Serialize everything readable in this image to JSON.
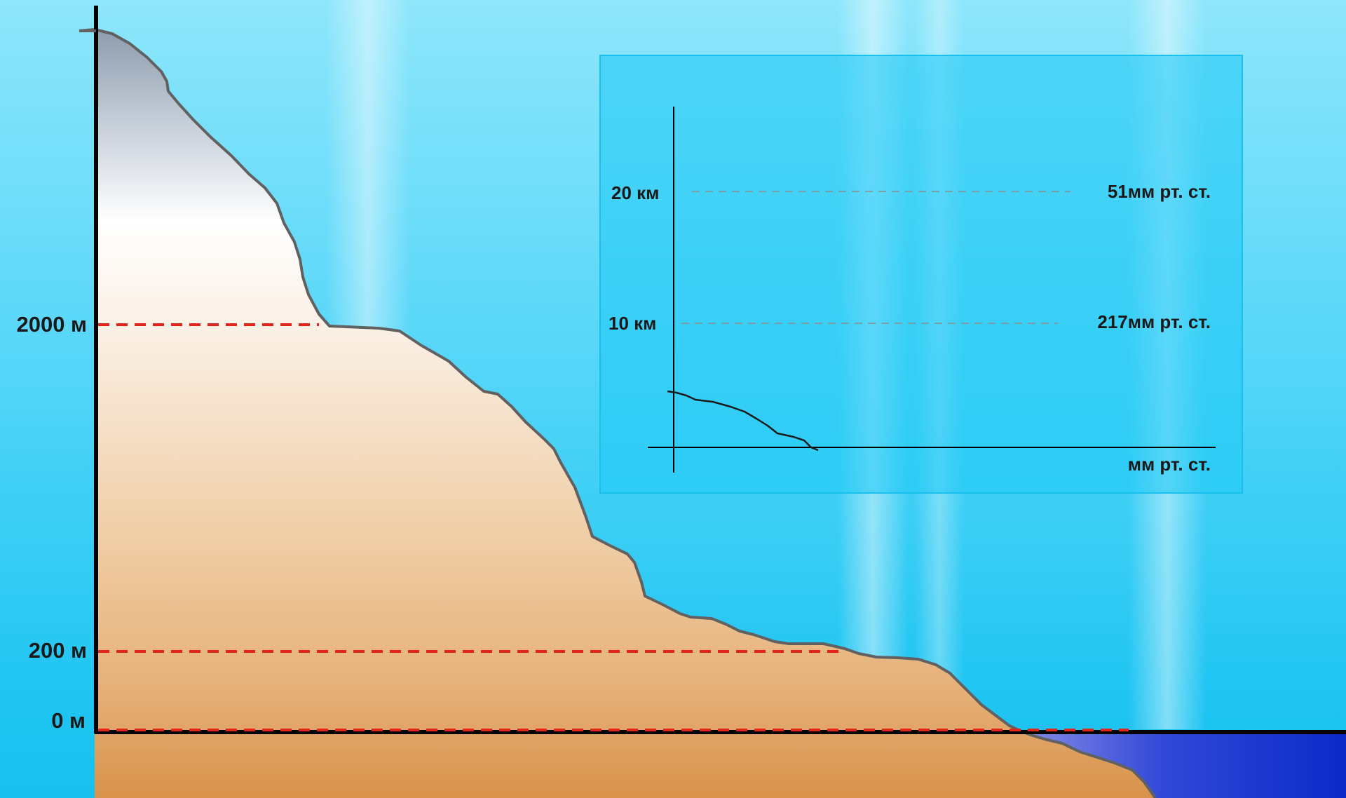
{
  "main_diagram": {
    "elevation_levels": [
      {
        "label": "2000 м",
        "value_m": 2000
      },
      {
        "label": "200 м",
        "value_m": 200
      },
      {
        "label": "0 м",
        "value_m": 0
      }
    ],
    "colors": {
      "level_line": "#e0261c",
      "outline": "#616161",
      "axis": "#000000",
      "water": "#1a3fd6"
    }
  },
  "inset_chart": {
    "y_levels": [
      {
        "altitude": "20 км",
        "pressure": "51мм рт. ст."
      },
      {
        "altitude": "10 км",
        "pressure": "217мм рт. ст."
      }
    ],
    "x_axis_label": "мм рт. ст."
  }
}
